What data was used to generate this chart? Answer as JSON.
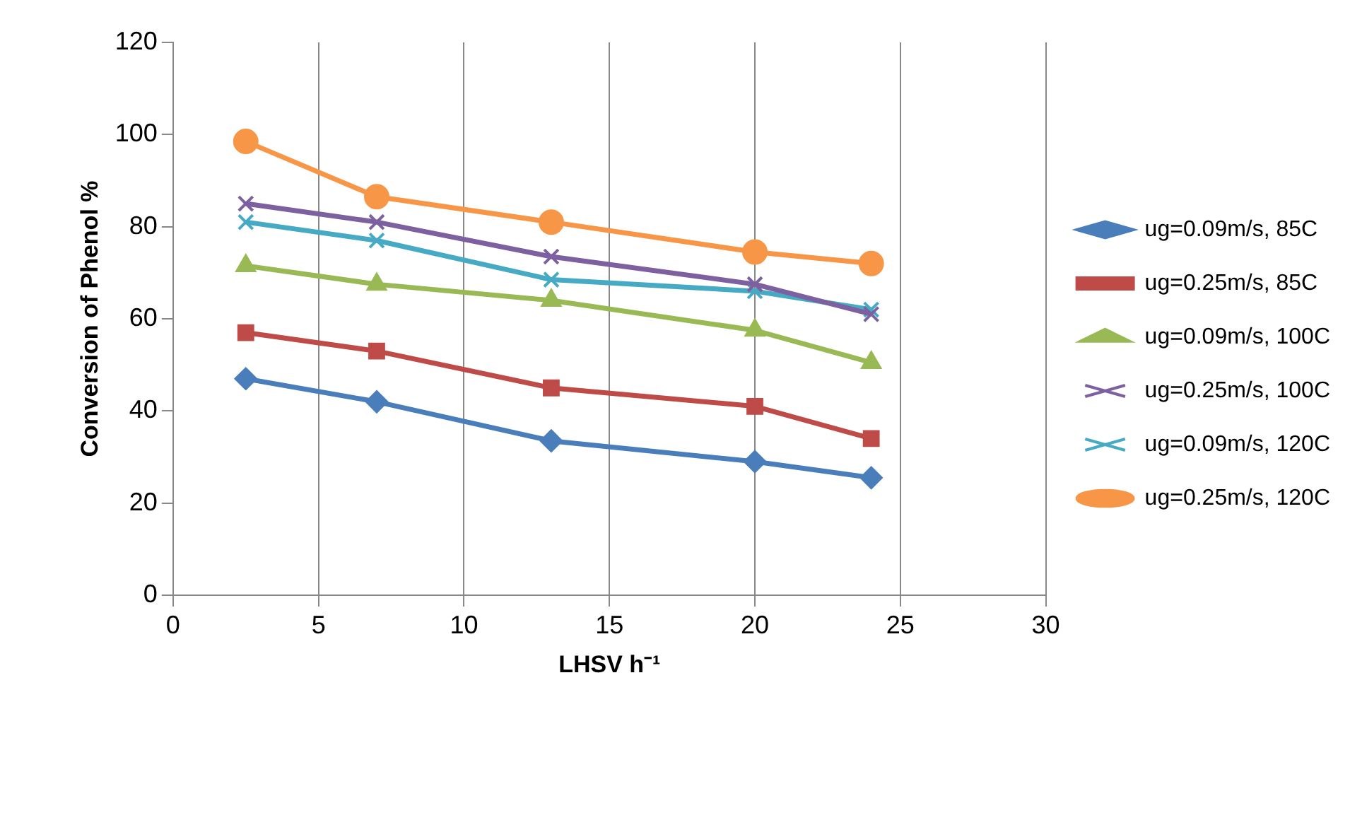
{
  "chart_data": {
    "type": "line",
    "xlabel": "LHSV h⁻¹",
    "ylabel": "Conversion of Phenol %",
    "x": [
      2.5,
      7,
      13,
      20,
      24
    ],
    "xlim": [
      0,
      30
    ],
    "xticks": [
      0,
      5,
      10,
      15,
      20,
      25,
      30
    ],
    "ylim": [
      0,
      120
    ],
    "yticks": [
      0,
      20,
      40,
      60,
      80,
      100,
      120
    ],
    "grid": "x",
    "legend": "right",
    "line_style": "solid",
    "series": [
      {
        "name": "ug=0.09m/s, 85C",
        "color": "#4a7ebb",
        "marker": "diamond",
        "values": [
          47,
          42,
          33.5,
          29,
          25.5
        ]
      },
      {
        "name": "ug=0.25m/s, 85C",
        "color": "#be4b48",
        "marker": "square",
        "values": [
          57,
          53,
          45,
          41,
          34
        ]
      },
      {
        "name": "ug=0.09m/s, 100C",
        "color": "#98b954",
        "marker": "triangle",
        "values": [
          71.5,
          67.5,
          64,
          57.5,
          50.5
        ]
      },
      {
        "name": "ug=0.25m/s, 100C",
        "color": "#7d60a0",
        "marker": "cross",
        "values": [
          85,
          81,
          73.5,
          67.5,
          61
        ]
      },
      {
        "name": "ug=0.09m/s, 120C",
        "color": "#46aac5",
        "marker": "cross",
        "values": [
          81,
          77,
          68.5,
          66,
          62
        ]
      },
      {
        "name": "ug=0.25m/s, 120C",
        "color": "#f79646",
        "marker": "circle",
        "values": [
          98.5,
          86.5,
          81,
          74.5,
          72
        ]
      }
    ]
  }
}
